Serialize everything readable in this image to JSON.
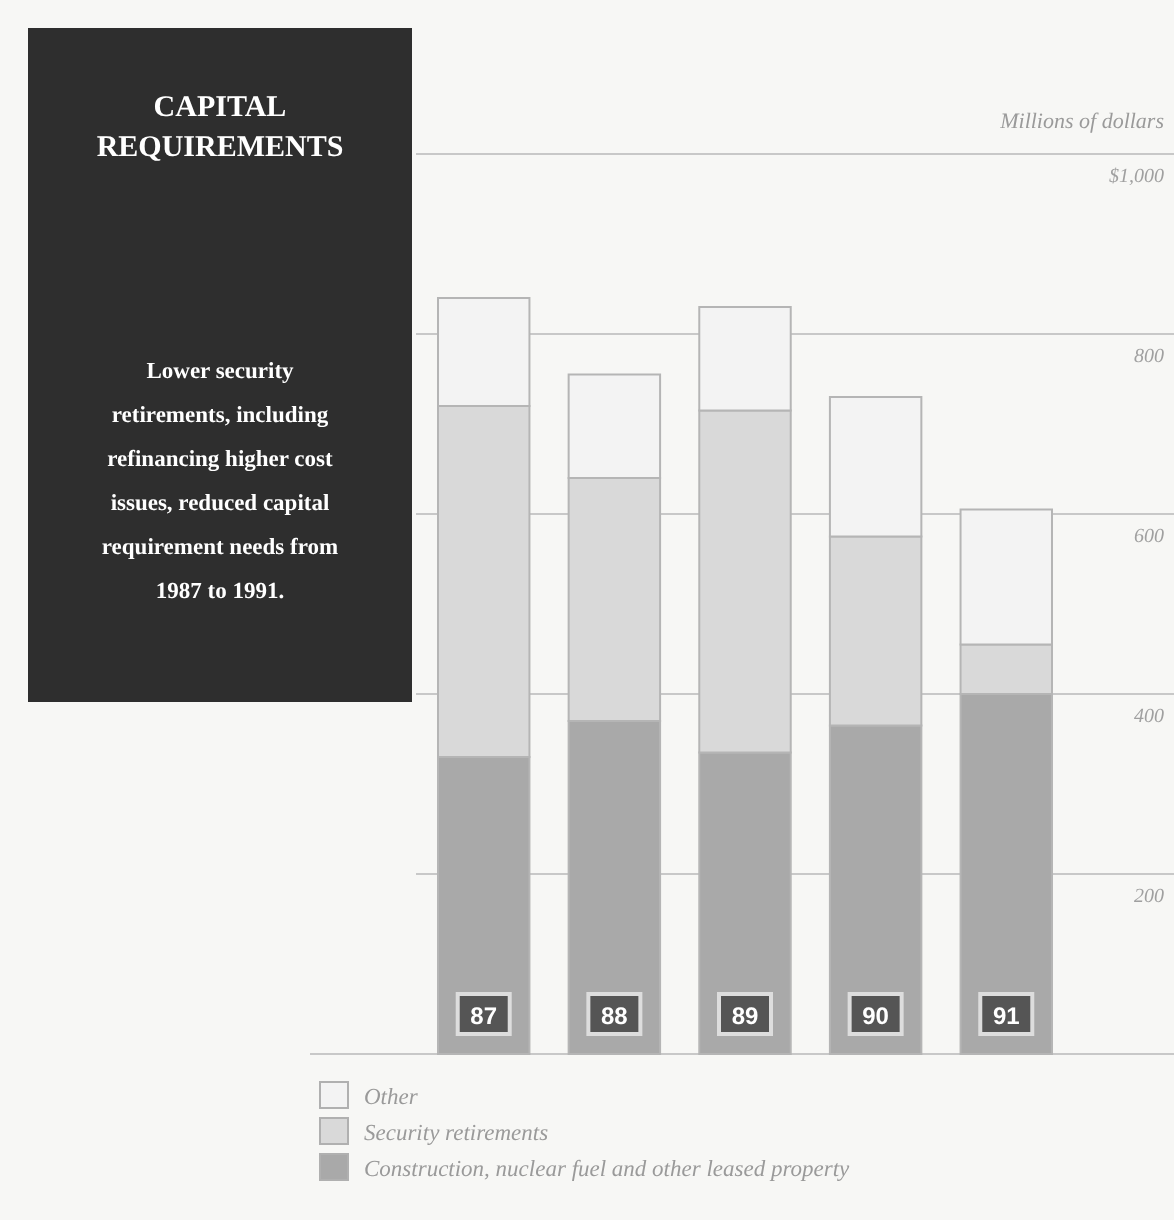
{
  "chart_data": {
    "type": "bar",
    "title": "CAPITAL REQUIREMENTS",
    "subtitle": "Lower security retirements, including refinancing higher cost issues, reduced capital requirement needs from 1987 to 1991.",
    "ylabel": "Millions of dollars",
    "categories": [
      "87",
      "88",
      "89",
      "90",
      "91"
    ],
    "stacked": true,
    "series": [
      {
        "name": "Construction, nuclear fuel and other leased property",
        "color": "#a9a9a9",
        "values": [
          330,
          370,
          335,
          365,
          400
        ]
      },
      {
        "name": "Security retirements",
        "color": "#d9d9d9",
        "values": [
          390,
          270,
          380,
          210,
          55
        ]
      },
      {
        "name": "Other",
        "color": "#f3f3f3",
        "values": [
          120,
          115,
          115,
          155,
          150
        ]
      }
    ],
    "ylim": [
      0,
      1000
    ],
    "yticks": [
      {
        "value": 0,
        "label": null
      },
      200,
      400,
      600,
      800,
      {
        "value": 1000,
        "label": "$1,000"
      }
    ],
    "grid": "y",
    "legend": "bottom"
  }
}
